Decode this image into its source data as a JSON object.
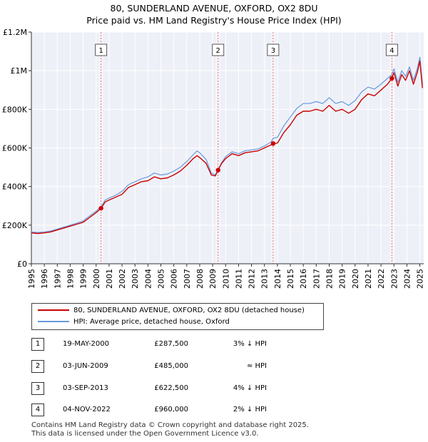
{
  "header": {
    "title": "80, SUNDERLAND AVENUE, OXFORD, OX2 8DU",
    "subtitle": "Price paid vs. HM Land Registry's House Price Index (HPI)"
  },
  "colors": {
    "property": "#cc0000",
    "hpi": "#6699dd",
    "marker": "#cc0000"
  },
  "chart_data": {
    "type": "line",
    "title": "80, SUNDERLAND AVENUE, OXFORD, OX2 8DU",
    "xlabel": "",
    "ylabel": "",
    "xlim": [
      1995,
      2025.3
    ],
    "ylim": [
      0,
      1200000
    ],
    "ytick_values": [
      0,
      200000,
      400000,
      600000,
      800000,
      1000000,
      1200000
    ],
    "ytick_labels": [
      "£0",
      "£200K",
      "£400K",
      "£600K",
      "£800K",
      "£1M",
      "£1.2M"
    ],
    "xtick_values": [
      1995,
      1996,
      1997,
      1998,
      1999,
      2000,
      2001,
      2002,
      2003,
      2004,
      2005,
      2006,
      2007,
      2008,
      2009,
      2010,
      2011,
      2012,
      2013,
      2014,
      2015,
      2016,
      2017,
      2018,
      2019,
      2020,
      2021,
      2022,
      2023,
      2024,
      2025
    ],
    "xtick_labels": [
      "1995",
      "1996",
      "1997",
      "1998",
      "1999",
      "2000",
      "2001",
      "2002",
      "2003",
      "2004",
      "2005",
      "2006",
      "2007",
      "2008",
      "2009",
      "2010",
      "2011",
      "2012",
      "2013",
      "2014",
      "2015",
      "2016",
      "2017",
      "2018",
      "2019",
      "2020",
      "2021",
      "2022",
      "2023",
      "2024",
      "2025"
    ],
    "grid": true,
    "series": [
      {
        "name": "80, SUNDERLAND AVENUE, OXFORD, OX2 8DU (detached house)",
        "color": "#cc0000",
        "x": [
          1995,
          1995.5,
          1996,
          1996.5,
          1997,
          1997.5,
          1998,
          1998.5,
          1999,
          1999.5,
          2000,
          2000.38,
          2000.7,
          2001,
          2001.5,
          2002,
          2002.5,
          2003,
          2003.5,
          2004,
          2004.5,
          2005,
          2005.5,
          2006,
          2006.5,
          2007,
          2007.5,
          2007.8,
          2008,
          2008.5,
          2008.9,
          2009.2,
          2009.42,
          2009.7,
          2010,
          2010.5,
          2011,
          2011.5,
          2012,
          2012.5,
          2013,
          2013.5,
          2013.67,
          2014,
          2014.5,
          2015,
          2015.5,
          2016,
          2016.5,
          2017,
          2017.5,
          2018,
          2018.5,
          2019,
          2019.5,
          2020,
          2020.5,
          2021,
          2021.5,
          2022,
          2022.5,
          2022.84,
          2023,
          2023.3,
          2023.6,
          2023.9,
          2024.2,
          2024.5,
          2024.8,
          2025,
          2025.2
        ],
        "y": [
          160000,
          157000,
          160000,
          165000,
          175000,
          185000,
          195000,
          205000,
          215000,
          240000,
          265000,
          287500,
          320000,
          330000,
          345000,
          360000,
          395000,
          410000,
          425000,
          430000,
          450000,
          440000,
          445000,
          460000,
          480000,
          510000,
          545000,
          560000,
          550000,
          520000,
          460000,
          455000,
          485000,
          520000,
          545000,
          570000,
          560000,
          575000,
          580000,
          585000,
          600000,
          615000,
          622500,
          625000,
          680000,
          720000,
          770000,
          790000,
          790000,
          800000,
          790000,
          820000,
          790000,
          800000,
          780000,
          800000,
          850000,
          880000,
          870000,
          900000,
          930000,
          960000,
          990000,
          920000,
          980000,
          950000,
          1000000,
          930000,
          990000,
          1050000,
          910000
        ]
      },
      {
        "name": "HPI: Average price, detached house, Oxford",
        "color": "#6699dd",
        "x": [
          1995,
          1995.5,
          1996,
          1996.5,
          1997,
          1997.5,
          1998,
          1998.5,
          1999,
          1999.5,
          2000,
          2000.38,
          2000.7,
          2001,
          2001.5,
          2002,
          2002.5,
          2003,
          2003.5,
          2004,
          2004.5,
          2005,
          2005.5,
          2006,
          2006.5,
          2007,
          2007.5,
          2007.8,
          2008,
          2008.5,
          2008.9,
          2009.2,
          2009.42,
          2009.7,
          2010,
          2010.5,
          2011,
          2011.5,
          2012,
          2012.5,
          2013,
          2013.5,
          2013.67,
          2014,
          2014.5,
          2015,
          2015.5,
          2016,
          2016.5,
          2017,
          2017.5,
          2018,
          2018.5,
          2019,
          2019.5,
          2020,
          2020.5,
          2021,
          2021.5,
          2022,
          2022.5,
          2022.84,
          2023,
          2023.3,
          2023.6,
          2023.9,
          2024.2,
          2024.5,
          2024.8,
          2025,
          2025.2
        ],
        "y": [
          165000,
          162000,
          165000,
          170000,
          180000,
          190000,
          200000,
          210000,
          222000,
          248000,
          273000,
          296000,
          330000,
          340000,
          355000,
          375000,
          410000,
          425000,
          440000,
          450000,
          470000,
          460000,
          465000,
          480000,
          500000,
          530000,
          565000,
          585000,
          575000,
          540000,
          470000,
          460000,
          485000,
          525000,
          555000,
          580000,
          570000,
          585000,
          590000,
          595000,
          610000,
          630000,
          650000,
          655000,
          715000,
          760000,
          805000,
          830000,
          830000,
          840000,
          830000,
          860000,
          830000,
          840000,
          820000,
          845000,
          890000,
          915000,
          905000,
          930000,
          960000,
          980000,
          1010000,
          940000,
          1000000,
          970000,
          1020000,
          950000,
          1010000,
          1070000,
          930000
        ]
      }
    ],
    "transactions": [
      {
        "label": "1",
        "date": "19-MAY-2000",
        "x": 2000.38,
        "price": 287500
      },
      {
        "label": "2",
        "date": "03-JUN-2009",
        "x": 2009.42,
        "price": 485000
      },
      {
        "label": "3",
        "date": "03-SEP-2013",
        "x": 2013.67,
        "price": 622500
      },
      {
        "label": "4",
        "date": "04-NOV-2022",
        "x": 2022.84,
        "price": 960000
      }
    ]
  },
  "legend": {
    "property_label": "80, SUNDERLAND AVENUE, OXFORD, OX2 8DU (detached house)",
    "hpi_label": "HPI: Average price, detached house, Oxford"
  },
  "transactions_table": [
    {
      "num": "1",
      "date": "19-MAY-2000",
      "price": "£287,500",
      "relation": "3% ↓ HPI"
    },
    {
      "num": "2",
      "date": "03-JUN-2009",
      "price": "£485,000",
      "relation": "≈ HPI"
    },
    {
      "num": "3",
      "date": "03-SEP-2013",
      "price": "£622,500",
      "relation": "4% ↓ HPI"
    },
    {
      "num": "4",
      "date": "04-NOV-2022",
      "price": "£960,000",
      "relation": "2% ↓ HPI"
    }
  ],
  "footer": {
    "line1": "Contains HM Land Registry data © Crown copyright and database right 2025.",
    "line2": "This data is licensed under the Open Government Licence v3.0."
  }
}
